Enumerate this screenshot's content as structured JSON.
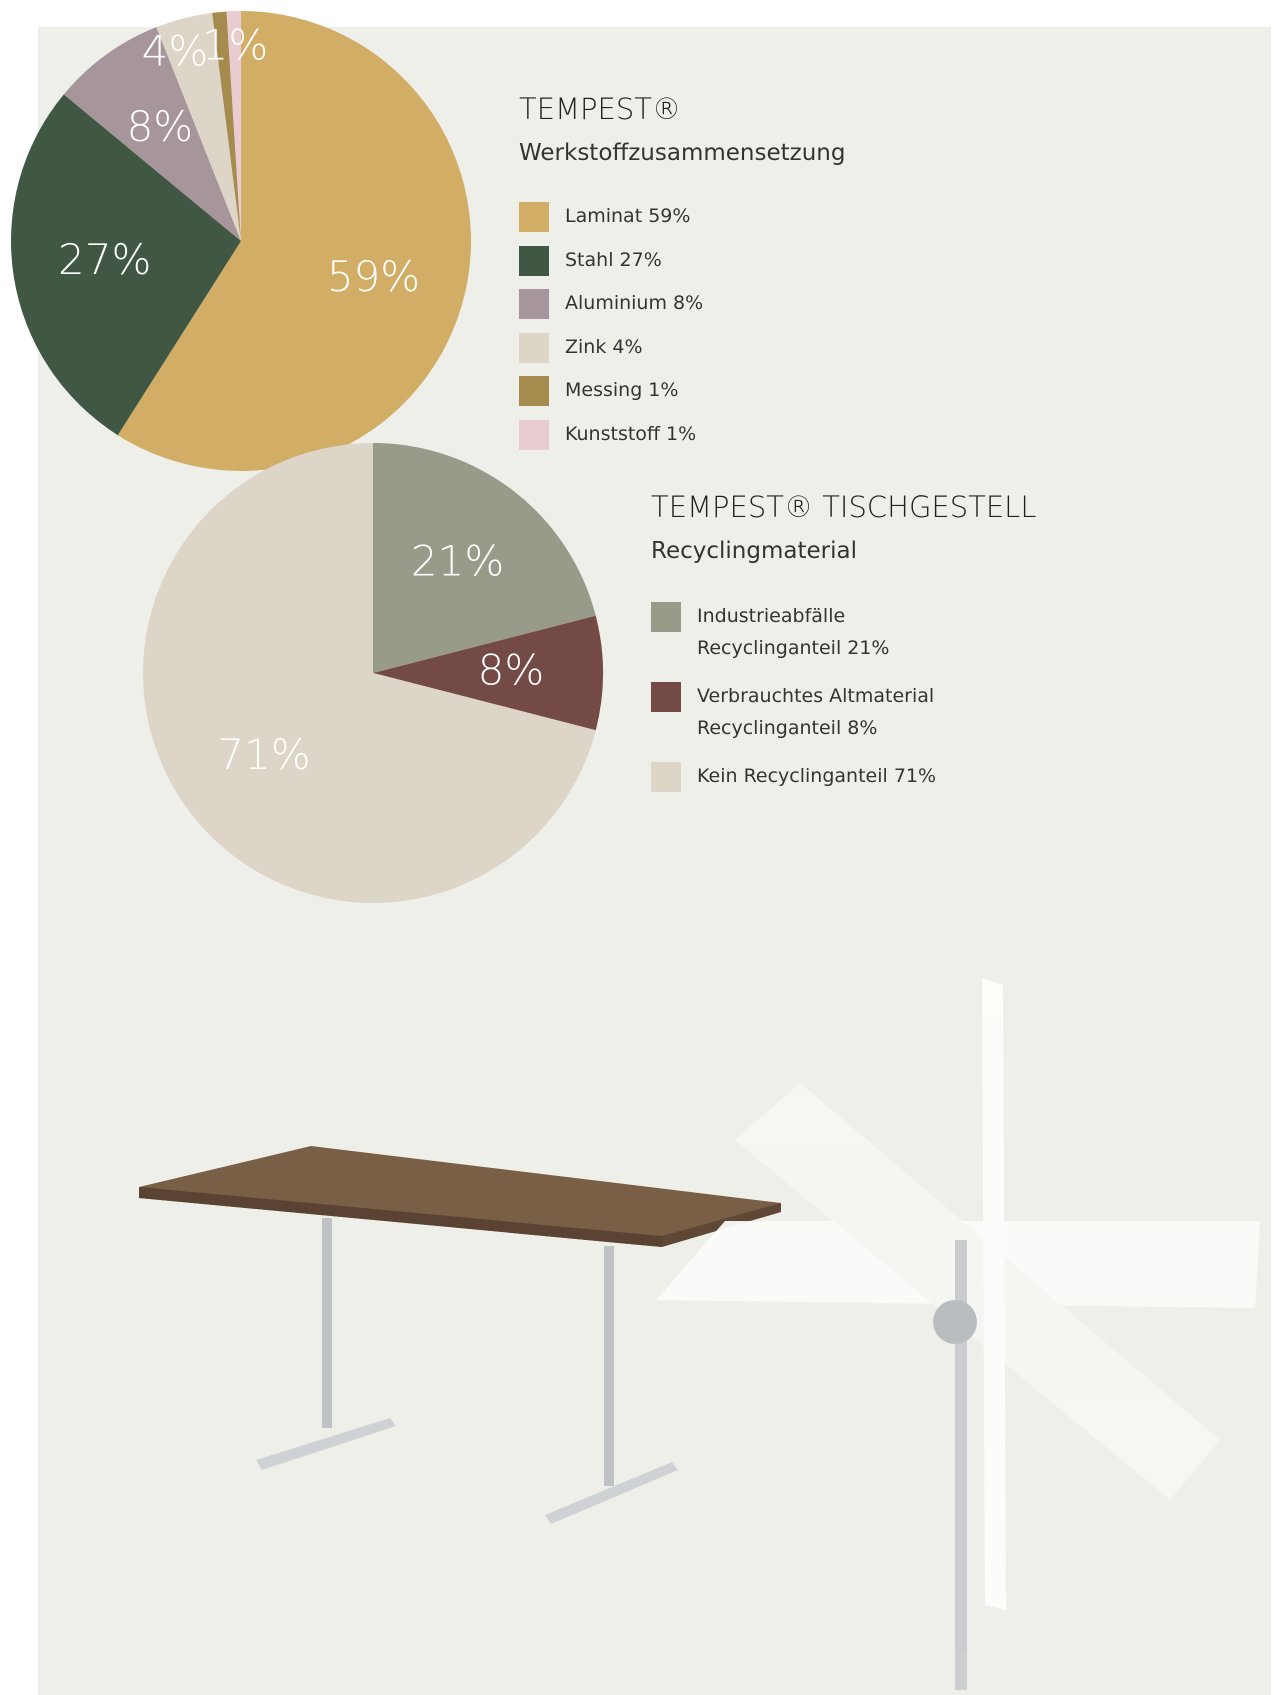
{
  "chart_data": [
    {
      "type": "pie",
      "title": "TEMPEST®",
      "subtitle": "Werkstoffzusammensetzung",
      "categories": [
        "Laminat 59%",
        "Stahl 27%",
        "Aluminium 8%",
        "Zink 4%",
        "Messing 1%",
        "Kunststoff 1%"
      ],
      "values": [
        59,
        27,
        8,
        4,
        1,
        1
      ],
      "value_labels": [
        "59%",
        "27%",
        "8%",
        "4%",
        null,
        "1%"
      ],
      "colors": [
        "#d1ad66",
        "#405743",
        "#a6959a",
        "#ddd5c8",
        "#a68b4f",
        "#e8ccd0"
      ]
    },
    {
      "type": "pie",
      "title": "TEMPEST® TISCHGESTELL",
      "subtitle": "Recyclingmaterial",
      "categories": [
        "Industrieabfälle\nRecyclinganteil 21%",
        "Verbrauchtes Altmaterial\nRecyclinganteil 8%",
        "Kein Recyclinganteil 71%"
      ],
      "values": [
        21,
        8,
        71
      ],
      "value_labels": [
        "21%",
        "8%",
        "71%"
      ],
      "colors": [
        "#989a8a",
        "#744a47",
        "#ddd5c8"
      ]
    }
  ]
}
